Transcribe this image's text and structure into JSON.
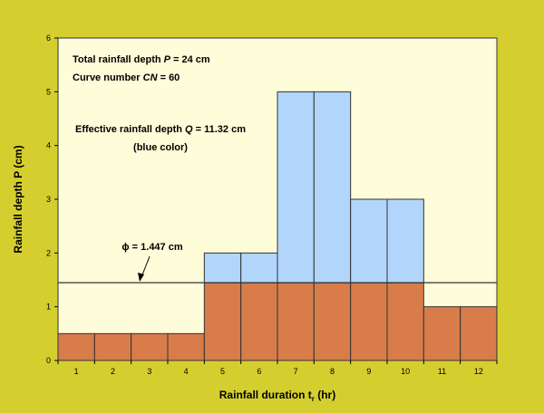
{
  "chart_data": {
    "type": "bar",
    "categories": [
      "1",
      "2",
      "3",
      "4",
      "5",
      "6",
      "7",
      "8",
      "9",
      "10",
      "11",
      "12"
    ],
    "series": [
      {
        "name": "Rainfall depth P",
        "values": [
          0.5,
          0.5,
          0.5,
          0.5,
          2,
          2,
          5,
          5,
          3,
          3,
          1,
          1
        ]
      },
      {
        "name": "Effective rainfall",
        "values": [
          0,
          0,
          0,
          0,
          0.553,
          0.553,
          3.553,
          3.553,
          1.553,
          1.553,
          0,
          0
        ]
      }
    ],
    "phi": 1.447,
    "xlabel": "Rainfall duration t",
    "xlabel_sub": "r",
    "xlabel_unit": " (hr)",
    "ylabel": "Rainfall depth P (cm)",
    "ylim": [
      0,
      6
    ],
    "yticks": [
      "0",
      "1",
      "2",
      "3",
      "4",
      "5",
      "6"
    ],
    "grid": false,
    "colors": {
      "background": "#d4cf2e",
      "plot_area": "#fffcd9",
      "bar_base": "#d87c4a",
      "bar_effective": "#b2d6fb",
      "stroke": "#333333"
    }
  },
  "annotations": {
    "total": {
      "prefix": "Total rainfall depth ",
      "var": "P",
      "suffix": " = 24 cm"
    },
    "curve": {
      "prefix": "Curve number ",
      "var": "CN",
      "suffix": " = 60"
    },
    "effective": {
      "prefix": "Effective rainfall depth ",
      "var": "Q",
      "suffix": " = 11.32 cm"
    },
    "effective_note": "(blue color)",
    "phi_label": "ϕ = 1.447 cm"
  }
}
